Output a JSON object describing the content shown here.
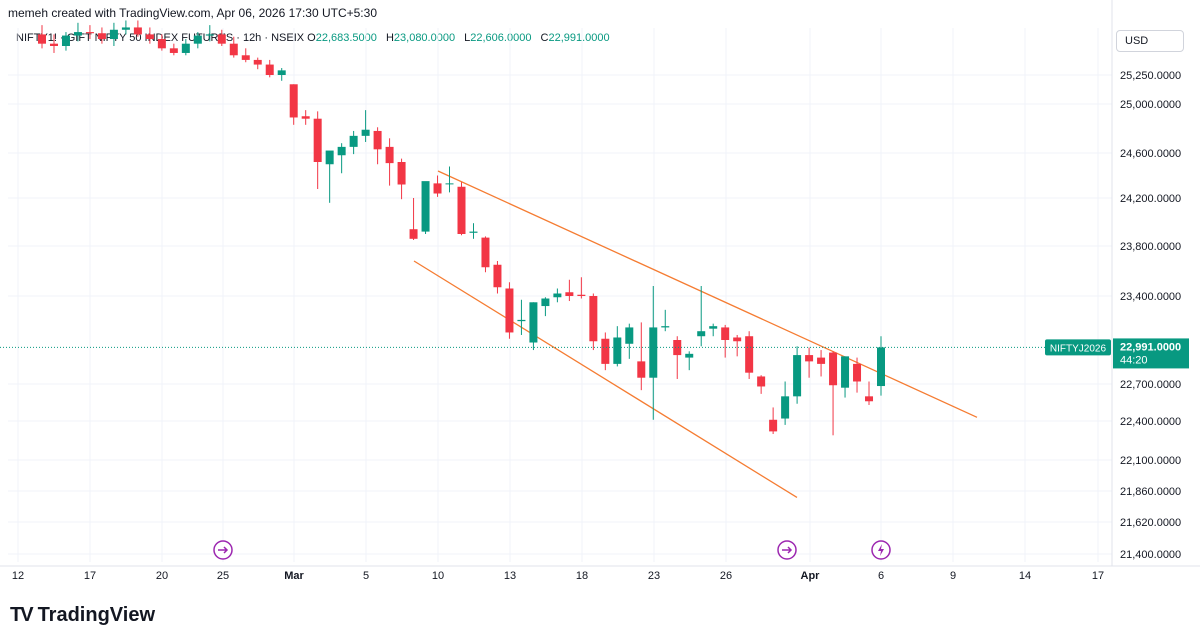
{
  "header": {
    "created_by": "memeh created with TradingView.com, Apr 06, 2026 17:30 UTC+5:30"
  },
  "legend": {
    "symbol": "NIFTY1! · GIFT NIFTY 50 INDEX FUTURES · 12h · NSEIX",
    "o_label": "O",
    "o_value": "22,683.5000",
    "h_label": "H",
    "h_value": "23,080.0000",
    "l_label": "L",
    "l_value": "22,606.0000",
    "c_label": "C",
    "c_value": "22,991.0000"
  },
  "currency": "USD",
  "price_tag": {
    "symbol": "NIFTYJ2026",
    "price": "22,991.0000",
    "countdown": "44:20"
  },
  "logo_text": "TradingView",
  "colors": {
    "up": "#089981",
    "down": "#f23645",
    "trend": "#f57c32",
    "marker": "#9c27b0"
  },
  "chart_data": {
    "type": "candlestick",
    "y_axis_labels": [
      "25,250.0000",
      "25,000.0000",
      "24,600.0000",
      "24,200.0000",
      "23,800.0000",
      "23,400.0000",
      "22,700.0000",
      "22,400.0000",
      "22,100.0000",
      "21,860.0000",
      "21,620.0000",
      "21,400.0000"
    ],
    "y_axis_values": [
      25250,
      25000,
      24600,
      24200,
      23800,
      23400,
      22700,
      22400,
      22100,
      21860,
      21620,
      21400
    ],
    "x_axis_labels": [
      "12",
      "17",
      "20",
      "25",
      "Mar",
      "5",
      "10",
      "13",
      "18",
      "23",
      "26",
      "Apr",
      "6",
      "9",
      "14",
      "17"
    ],
    "current_price": 22991,
    "candles": [
      [
        25600,
        25680,
        25480,
        25520
      ],
      [
        25520,
        25600,
        25440,
        25500
      ],
      [
        25500,
        25620,
        25460,
        25590
      ],
      [
        25590,
        25700,
        25540,
        25620
      ],
      [
        25620,
        25680,
        25560,
        25610
      ],
      [
        25610,
        25660,
        25520,
        25560
      ],
      [
        25560,
        25700,
        25500,
        25640
      ],
      [
        25640,
        25720,
        25600,
        25660
      ],
      [
        25660,
        25720,
        25580,
        25600
      ],
      [
        25600,
        25660,
        25520,
        25560
      ],
      [
        25560,
        25600,
        25460,
        25480
      ],
      [
        25480,
        25520,
        25420,
        25440
      ],
      [
        25440,
        25560,
        25420,
        25520
      ],
      [
        25520,
        25620,
        25480,
        25590
      ],
      [
        25590,
        25680,
        25540,
        25600
      ],
      [
        25600,
        25640,
        25500,
        25520
      ],
      [
        25520,
        25580,
        25400,
        25420
      ],
      [
        25420,
        25480,
        25360,
        25380
      ],
      [
        25380,
        25400,
        25300,
        25340
      ],
      [
        25340,
        25380,
        25230,
        25250
      ],
      [
        25250,
        25310,
        25200,
        25290
      ],
      [
        25170,
        25170,
        24830,
        24890
      ],
      [
        24900,
        24950,
        24830,
        24880
      ],
      [
        24880,
        24940,
        24280,
        24520
      ],
      [
        24500,
        24610,
        24160,
        24620
      ],
      [
        24580,
        24680,
        24420,
        24650
      ],
      [
        24650,
        24780,
        24590,
        24740
      ],
      [
        24740,
        24950,
        24690,
        24790
      ],
      [
        24780,
        24810,
        24500,
        24630
      ],
      [
        24650,
        24720,
        24310,
        24510
      ],
      [
        24520,
        24550,
        24190,
        24320
      ],
      [
        23940,
        24200,
        23850,
        23860
      ],
      [
        23920,
        24340,
        23900,
        24350
      ],
      [
        24330,
        24400,
        24210,
        24240
      ],
      [
        24330,
        24480,
        24250,
        24330
      ],
      [
        24300,
        24340,
        23890,
        23900
      ],
      [
        23910,
        23990,
        23860,
        23920
      ],
      [
        23870,
        23880,
        23590,
        23630
      ],
      [
        23650,
        23680,
        23420,
        23470
      ],
      [
        23460,
        23510,
        23060,
        23110
      ],
      [
        23200,
        23370,
        23090,
        23210
      ],
      [
        23030,
        23350,
        22970,
        23350
      ],
      [
        23320,
        23390,
        23240,
        23380
      ],
      [
        23390,
        23460,
        23350,
        23420
      ],
      [
        23430,
        23530,
        23360,
        23400
      ],
      [
        23410,
        23550,
        23380,
        23400
      ],
      [
        23400,
        23420,
        22970,
        23040
      ],
      [
        23060,
        23110,
        22810,
        22860
      ],
      [
        22860,
        23160,
        22840,
        23070
      ],
      [
        23020,
        23180,
        22900,
        23150
      ],
      [
        22880,
        23190,
        22650,
        22750
      ],
      [
        22750,
        23480,
        22410,
        23150
      ],
      [
        23150,
        23290,
        23120,
        23160
      ],
      [
        23050,
        23080,
        22740,
        22930
      ],
      [
        22910,
        22960,
        22810,
        22940
      ],
      [
        23080,
        23480,
        23000,
        23120
      ],
      [
        23140,
        23180,
        23080,
        23160
      ],
      [
        23150,
        23170,
        22910,
        23050
      ],
      [
        23070,
        23090,
        22920,
        23040
      ],
      [
        23080,
        23120,
        22740,
        22790
      ],
      [
        22760,
        22770,
        22620,
        22680
      ],
      [
        22410,
        22510,
        22300,
        22320
      ],
      [
        22420,
        22720,
        22370,
        22600
      ],
      [
        22600,
        23000,
        22540,
        22930
      ],
      [
        22930,
        22990,
        22750,
        22880
      ],
      [
        22910,
        22970,
        22760,
        22860
      ],
      [
        22950,
        22960,
        22290,
        22690
      ],
      [
        22670,
        22920,
        22590,
        22920
      ],
      [
        22860,
        22910,
        22630,
        22720
      ],
      [
        22600,
        22720,
        22530,
        22560
      ],
      [
        22683.5,
        23080,
        22606,
        22991
      ]
    ],
    "trendlines": [
      {
        "name": "upper",
        "from": [
          24140,
          24440
        ],
        "to": [
          1010,
          22430
        ]
      },
      {
        "name": "lower",
        "from": [
          24110,
          23680
        ],
        "to": [
          1000,
          21810
        ]
      }
    ]
  }
}
